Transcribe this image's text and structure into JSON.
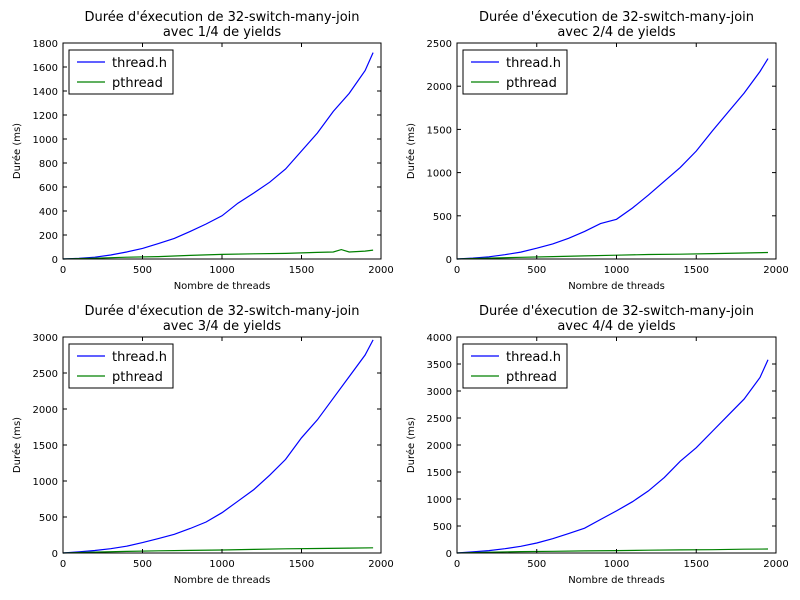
{
  "chart_data": [
    {
      "type": "line",
      "title": "Durée d'éxecution de 32-switch-many-join",
      "subtitle": "avec 1/4 de yields",
      "xlabel": "Nombre de threads",
      "ylabel": "Durée (ms)",
      "xlim": [
        0,
        2000
      ],
      "ylim": [
        0,
        1800
      ],
      "xticks": [
        0,
        500,
        1000,
        1500,
        2000
      ],
      "yticks": [
        0,
        200,
        400,
        600,
        800,
        1000,
        1200,
        1400,
        1600,
        1800
      ],
      "legend_position": "top-left",
      "series": [
        {
          "name": "thread.h",
          "color": "#0000ff",
          "x": [
            0,
            100,
            200,
            300,
            400,
            500,
            600,
            700,
            800,
            900,
            1000,
            1100,
            1200,
            1300,
            1400,
            1500,
            1600,
            1700,
            1800,
            1900,
            1950
          ],
          "y": [
            0,
            6,
            15,
            33,
            58,
            88,
            128,
            172,
            230,
            292,
            360,
            465,
            550,
            640,
            750,
            900,
            1050,
            1230,
            1380,
            1570,
            1720
          ]
        },
        {
          "name": "pthread",
          "color": "#008000",
          "x": [
            0,
            200,
            400,
            600,
            800,
            1000,
            1200,
            1400,
            1600,
            1700,
            1750,
            1800,
            1900,
            1950
          ],
          "y": [
            0,
            7,
            15,
            20,
            30,
            38,
            43,
            47,
            55,
            58,
            78,
            58,
            66,
            74
          ]
        }
      ]
    },
    {
      "type": "line",
      "title": "Durée d'éxecution de 32-switch-many-join",
      "subtitle": "avec 2/4 de yields",
      "xlabel": "Nombre de threads",
      "ylabel": "Durée (ms)",
      "xlim": [
        0,
        2000
      ],
      "ylim": [
        0,
        2500
      ],
      "xticks": [
        0,
        500,
        1000,
        1500,
        2000
      ],
      "yticks": [
        0,
        500,
        1000,
        1500,
        2000,
        2500
      ],
      "legend_position": "top-left",
      "series": [
        {
          "name": "thread.h",
          "color": "#0000ff",
          "x": [
            0,
            100,
            200,
            300,
            400,
            500,
            600,
            700,
            800,
            900,
            1000,
            1100,
            1200,
            1300,
            1400,
            1500,
            1600,
            1700,
            1800,
            1900,
            1950
          ],
          "y": [
            0,
            10,
            25,
            50,
            80,
            125,
            175,
            240,
            320,
            410,
            460,
            590,
            740,
            900,
            1060,
            1250,
            1480,
            1700,
            1920,
            2170,
            2320
          ]
        },
        {
          "name": "pthread",
          "color": "#008000",
          "x": [
            0,
            200,
            400,
            600,
            800,
            1000,
            1200,
            1400,
            1600,
            1800,
            1950
          ],
          "y": [
            0,
            10,
            20,
            28,
            36,
            44,
            52,
            56,
            62,
            70,
            75
          ]
        }
      ]
    },
    {
      "type": "line",
      "title": "Durée d'éxecution de 32-switch-many-join",
      "subtitle": "avec 3/4 de yields",
      "xlabel": "Nombre de threads",
      "ylabel": "Durée (ms)",
      "xlim": [
        0,
        2000
      ],
      "ylim": [
        0,
        3000
      ],
      "xticks": [
        0,
        500,
        1000,
        1500,
        2000
      ],
      "yticks": [
        0,
        500,
        1000,
        1500,
        2000,
        2500,
        3000
      ],
      "legend_position": "top-left",
      "series": [
        {
          "name": "thread.h",
          "color": "#0000ff",
          "x": [
            0,
            100,
            200,
            300,
            400,
            500,
            600,
            700,
            800,
            900,
            1000,
            1100,
            1200,
            1300,
            1400,
            1500,
            1600,
            1700,
            1800,
            1900,
            1950
          ],
          "y": [
            0,
            15,
            35,
            60,
            95,
            145,
            200,
            260,
            340,
            430,
            560,
            720,
            880,
            1080,
            1300,
            1600,
            1850,
            2150,
            2450,
            2750,
            2960
          ]
        },
        {
          "name": "pthread",
          "color": "#008000",
          "x": [
            0,
            200,
            400,
            600,
            800,
            1000,
            1200,
            1400,
            1600,
            1800,
            1950
          ],
          "y": [
            0,
            12,
            22,
            30,
            36,
            42,
            50,
            58,
            62,
            68,
            72
          ]
        }
      ]
    },
    {
      "type": "line",
      "title": "Durée d'éxecution de 32-switch-many-join",
      "subtitle": "avec 4/4 de yields",
      "xlabel": "Nombre de threads",
      "ylabel": "Durée (ms)",
      "xlim": [
        0,
        2000
      ],
      "ylim": [
        0,
        4000
      ],
      "xticks": [
        0,
        500,
        1000,
        1500,
        2000
      ],
      "yticks": [
        0,
        500,
        1000,
        1500,
        2000,
        2500,
        3000,
        3500,
        4000
      ],
      "legend_position": "top-left",
      "series": [
        {
          "name": "thread.h",
          "color": "#0000ff",
          "x": [
            0,
            100,
            200,
            300,
            400,
            500,
            600,
            700,
            800,
            900,
            1000,
            1100,
            1200,
            1300,
            1400,
            1500,
            1600,
            1700,
            1800,
            1900,
            1950
          ],
          "y": [
            0,
            20,
            45,
            80,
            125,
            185,
            265,
            360,
            460,
            620,
            780,
            950,
            1150,
            1400,
            1700,
            1950,
            2250,
            2550,
            2850,
            3250,
            3580
          ]
        },
        {
          "name": "pthread",
          "color": "#008000",
          "x": [
            0,
            200,
            400,
            600,
            800,
            1000,
            1200,
            1400,
            1600,
            1800,
            1950
          ],
          "y": [
            0,
            15,
            25,
            32,
            38,
            45,
            52,
            58,
            62,
            70,
            75
          ]
        }
      ]
    }
  ]
}
